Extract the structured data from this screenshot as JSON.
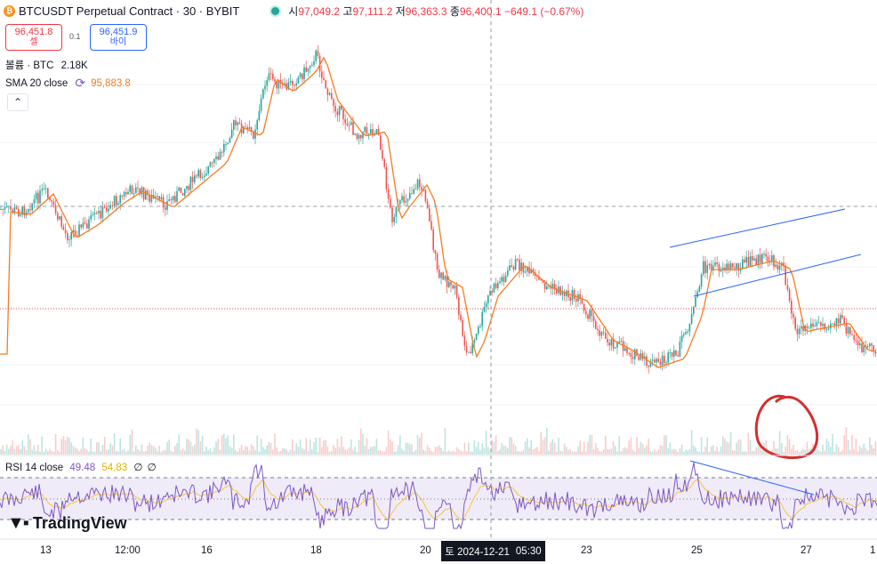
{
  "header": {
    "coin_icon": "bitcoin-icon",
    "title": "BTCUSDT Perpetual Contract · 30 · BYBIT",
    "ohlc": [
      {
        "k": "시",
        "v": "97,049.2"
      },
      {
        "k": "고",
        "v": "97,111.2"
      },
      {
        "k": "저",
        "v": "96,363.3"
      },
      {
        "k": "종",
        "v": "96,400.1"
      }
    ],
    "change": "−649.1 (−0.67%)",
    "status_color": "#26a69a"
  },
  "trade": {
    "sell_price": "96,451.8",
    "sell_label": "셀",
    "spread": "0.1",
    "buy_price": "96,451.9",
    "buy_label": "바이"
  },
  "legend": {
    "volume_label": "볼륨 · BTC",
    "volume_value": "2.18K",
    "sma_label": "SMA 20 close",
    "sma_value": "95,883.8",
    "collapse_icon": "chevron-up-icon"
  },
  "rsi": {
    "label": "RSI 14 close",
    "value": "49.48",
    "ma_value": "54.83",
    "extra1": "∅",
    "extra2": "∅"
  },
  "x_axis": {
    "labels": [
      "13",
      "12:00",
      "16",
      "18",
      "20",
      "23",
      "25",
      "27",
      "1"
    ],
    "crosshair_date": "토  2024-12-21",
    "crosshair_time": "05:30"
  },
  "logo": {
    "text": "TradingView",
    "icon": "tradingview-logo-icon"
  },
  "colors": {
    "up": "#26a69a",
    "down": "#ef5350",
    "sma": "#f57c20",
    "rsi": "#7e57c2",
    "rsi_ma": "#f5c542",
    "trendline": "#2962ff",
    "annotation": "#d32f2f"
  }
}
